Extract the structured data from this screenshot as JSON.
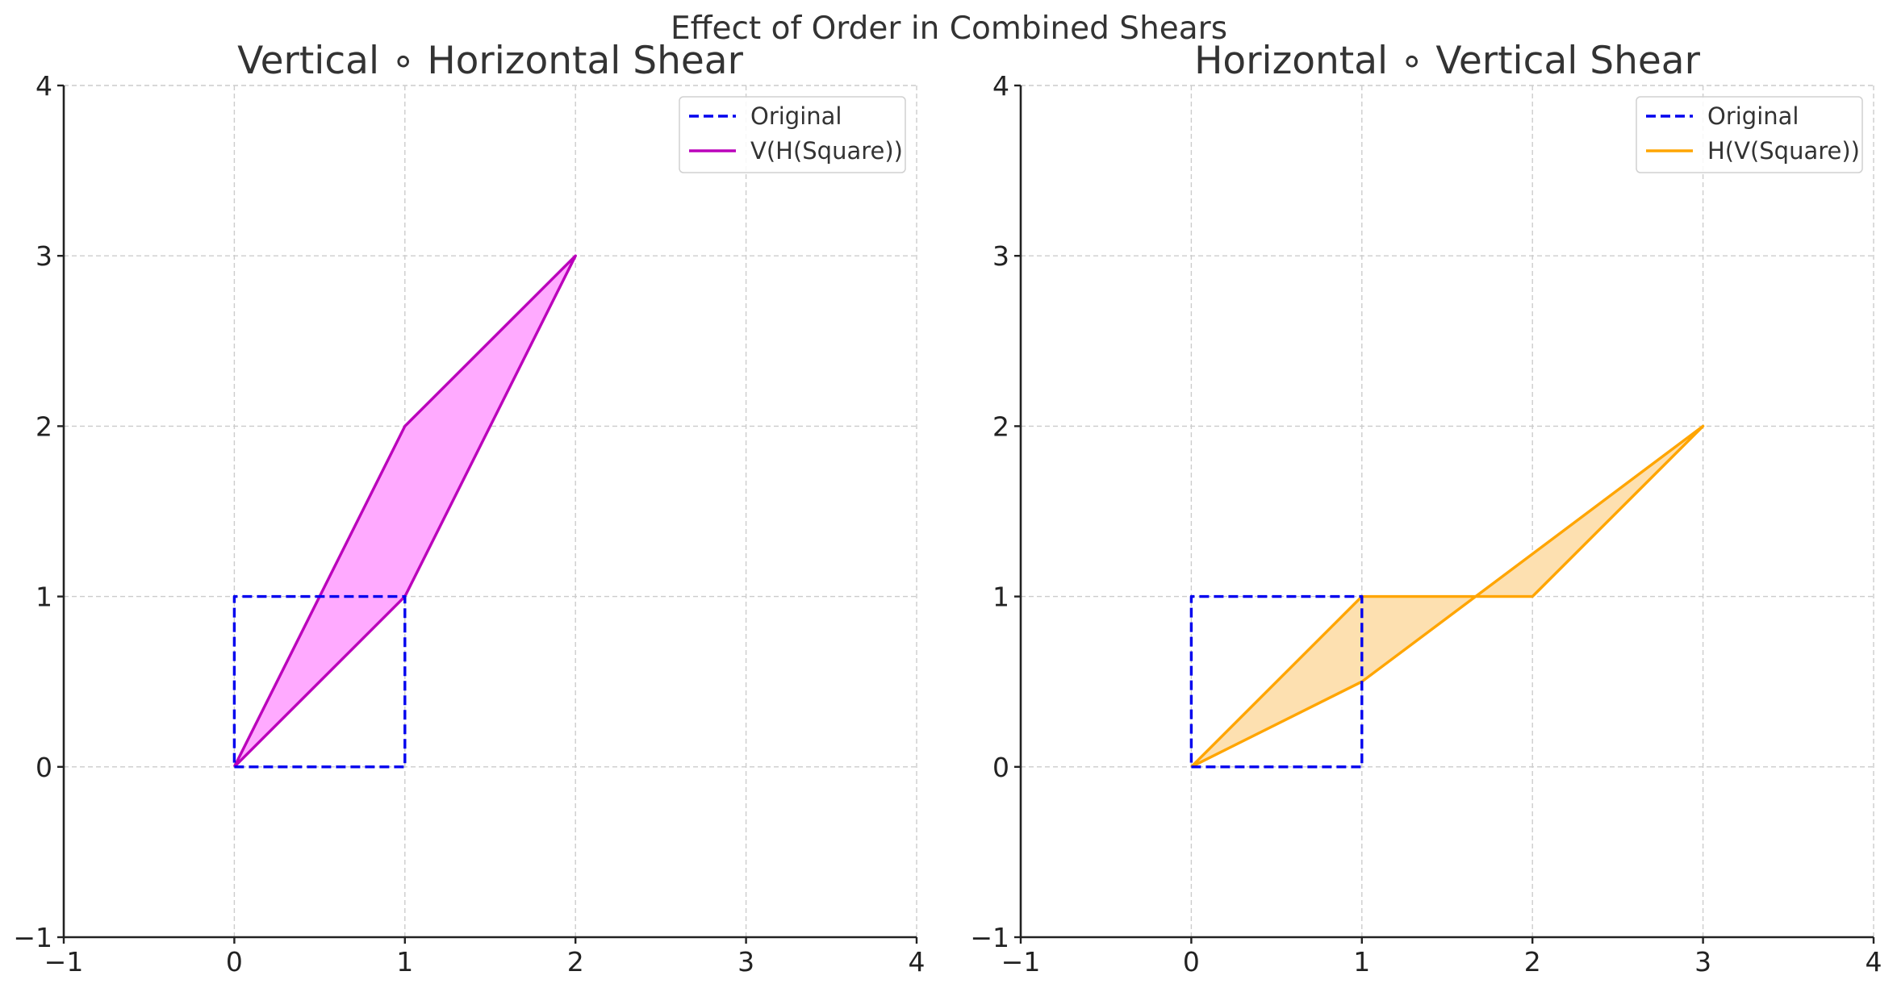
{
  "figure_title": "Effect of Order in Combined Shears",
  "chart_data": [
    {
      "type": "line",
      "title": "Vertical ∘ Horizontal Shear",
      "xlabel": "",
      "ylabel": "",
      "xlim": [
        -1,
        4
      ],
      "ylim": [
        -1,
        4
      ],
      "xticks": [
        "−1",
        "0",
        "1",
        "2",
        "3",
        "4"
      ],
      "yticks": [
        "−1",
        "0",
        "1",
        "2",
        "3",
        "4"
      ],
      "grid": true,
      "legend_position": "top-right",
      "series": [
        {
          "name": "Original",
          "style": "dashed",
          "color": "#0000ee",
          "fill": "none",
          "points": [
            [
              0,
              0
            ],
            [
              1,
              0
            ],
            [
              1,
              1
            ],
            [
              0,
              1
            ],
            [
              0,
              0
            ]
          ]
        },
        {
          "name": "V(H(Square))",
          "style": "solid",
          "color": "#bb00bb",
          "fill": "#ffaaff",
          "points": [
            [
              0,
              0
            ],
            [
              1,
              1
            ],
            [
              2,
              3
            ],
            [
              1,
              2
            ],
            [
              0,
              0
            ]
          ]
        }
      ]
    },
    {
      "type": "line",
      "title": "Horizontal ∘ Vertical Shear",
      "xlabel": "",
      "ylabel": "",
      "xlim": [
        -1,
        4
      ],
      "ylim": [
        -1,
        4
      ],
      "xticks": [
        "−1",
        "0",
        "1",
        "2",
        "3",
        "4"
      ],
      "yticks": [
        "−1",
        "0",
        "1",
        "2",
        "3",
        "4"
      ],
      "grid": true,
      "legend_position": "top-right",
      "series": [
        {
          "name": "Original",
          "style": "dashed",
          "color": "#0000ee",
          "fill": "none",
          "points": [
            [
              0,
              0
            ],
            [
              1,
              0
            ],
            [
              1,
              1
            ],
            [
              0,
              1
            ],
            [
              0,
              0
            ]
          ]
        },
        {
          "name": "H(V(Square))",
          "style": "solid",
          "color": "#ffa500",
          "fill": "#fde0b0",
          "points": [
            [
              0,
              0
            ],
            [
              1,
              0.5
            ],
            [
              3,
              2
            ],
            [
              2,
              1
            ],
            [
              1,
              1
            ],
            [
              0,
              0
            ]
          ]
        }
      ]
    }
  ]
}
